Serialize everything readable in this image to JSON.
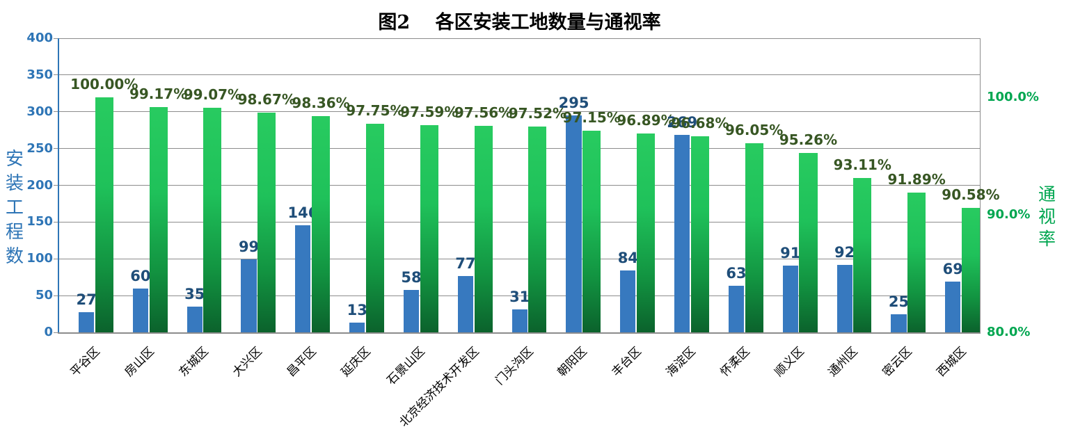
{
  "chart_data": {
    "type": "bar",
    "title": "图2　 各区安装工地数量与通视率",
    "categories": [
      "平谷区",
      "房山区",
      "东城区",
      "大兴区",
      "昌平区",
      "延庆区",
      "石景山区",
      "北京经济技术开发区",
      "门头沟区",
      "朝阳区",
      "丰台区",
      "海淀区",
      "怀柔区",
      "顺义区",
      "通州区",
      "密云区",
      "西城区"
    ],
    "series": [
      {
        "name": "安装工程数",
        "axis": "left",
        "type": "bar",
        "values": [
          27,
          60,
          35,
          99,
          146,
          13,
          58,
          77,
          31,
          295,
          84,
          269,
          63,
          91,
          92,
          25,
          69
        ],
        "bar_color": "#3779BF",
        "label_color": "#1F4E79"
      },
      {
        "name": "通视率",
        "axis": "right",
        "type": "bar",
        "values": [
          100.0,
          99.17,
          99.07,
          98.67,
          98.36,
          97.75,
          97.59,
          97.56,
          97.52,
          97.15,
          96.89,
          96.68,
          96.05,
          95.26,
          93.11,
          91.89,
          90.58
        ],
        "labels": [
          "100.00%",
          "99.17%",
          "99.07%",
          "98.67%",
          "98.36%",
          "97.75%",
          "97.59%",
          "97.56%",
          "97.52%",
          "97.15%",
          "96.89%",
          "96.68%",
          "96.05%",
          "95.26%",
          "93.11%",
          "91.89%",
          "90.58%"
        ],
        "bar_color_top": "#28CB60",
        "bar_color_bottom": "#0B622C",
        "label_color": "#375623"
      }
    ],
    "left_axis": {
      "title": "安装工程数",
      "min": 0,
      "max": 400,
      "tick_step": 50,
      "tick_labels": [
        "0",
        "50",
        "100",
        "150",
        "200",
        "250",
        "300",
        "350",
        "400"
      ],
      "color": "#2E75B6"
    },
    "right_axis": {
      "title": "通视率",
      "min": 80,
      "max": 105,
      "ticks": [
        {
          "value": 80,
          "label": "80.0%"
        },
        {
          "value": 90,
          "label": "90.0%"
        },
        {
          "value": 100,
          "label": "100.0%"
        }
      ],
      "color": "#00A650"
    },
    "grid": true,
    "grid_color": "#8C8C8C",
    "legend_position": "none"
  }
}
